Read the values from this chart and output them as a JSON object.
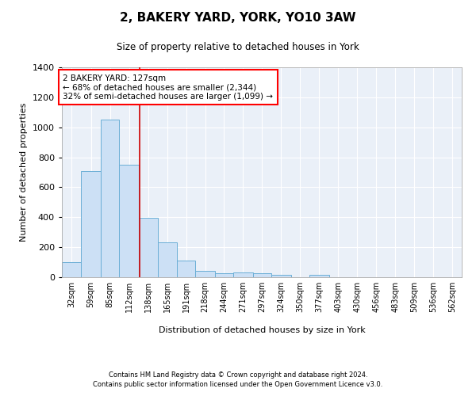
{
  "title": "2, BAKERY YARD, YORK, YO10 3AW",
  "subtitle": "Size of property relative to detached houses in York",
  "xlabel": "Distribution of detached houses by size in York",
  "ylabel": "Number of detached properties",
  "bar_color": "#cce0f5",
  "bar_edge_color": "#6aaed6",
  "background_color": "#eaf0f8",
  "grid_color": "#ffffff",
  "annotation_text": "2 BAKERY YARD: 127sqm\n← 68% of detached houses are smaller (2,344)\n32% of semi-detached houses are larger (1,099) →",
  "vline_x": 127,
  "vline_color": "#cc0000",
  "categories": [
    "32sqm",
    "59sqm",
    "85sqm",
    "112sqm",
    "138sqm",
    "165sqm",
    "191sqm",
    "218sqm",
    "244sqm",
    "271sqm",
    "297sqm",
    "324sqm",
    "350sqm",
    "377sqm",
    "403sqm",
    "430sqm",
    "456sqm",
    "483sqm",
    "509sqm",
    "536sqm",
    "562sqm"
  ],
  "bin_edges": [
    18.5,
    45.5,
    72.5,
    98.5,
    125.5,
    152.5,
    178.5,
    204.5,
    231.5,
    257.5,
    284.5,
    310.5,
    337.5,
    363.5,
    390.5,
    416.5,
    443.5,
    469.5,
    496.5,
    522.5,
    549.5,
    575.5
  ],
  "values": [
    100,
    710,
    1050,
    750,
    395,
    235,
    110,
    40,
    25,
    30,
    25,
    15,
    0,
    15,
    0,
    0,
    0,
    0,
    0,
    0,
    0
  ],
  "ylim": [
    0,
    1400
  ],
  "yticks": [
    0,
    200,
    400,
    600,
    800,
    1000,
    1200,
    1400
  ],
  "footer_line1": "Contains HM Land Registry data © Crown copyright and database right 2024.",
  "footer_line2": "Contains public sector information licensed under the Open Government Licence v3.0."
}
